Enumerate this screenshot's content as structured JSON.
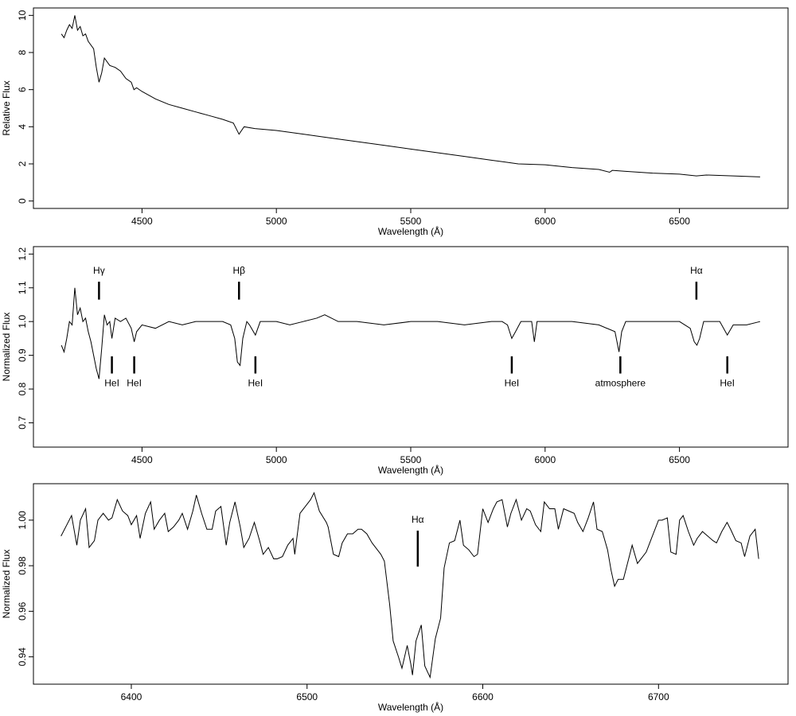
{
  "chart_data": [
    {
      "type": "line",
      "xlabel": "Wavelength (Å)",
      "ylabel": "Relative Flux",
      "color": "#000000",
      "xlim": [
        4096,
        6904
      ],
      "ylim": [
        -0.4,
        10.4
      ],
      "xticks": [
        4500,
        5000,
        5500,
        6000,
        6500
      ],
      "yticks": [
        0,
        2,
        4,
        6,
        8,
        10
      ],
      "x": [
        4200,
        4210,
        4220,
        4230,
        4240,
        4250,
        4260,
        4270,
        4280,
        4290,
        4300,
        4320,
        4330,
        4340,
        4350,
        4360,
        4380,
        4400,
        4420,
        4440,
        4460,
        4470,
        4480,
        4500,
        4550,
        4600,
        4650,
        4700,
        4750,
        4800,
        4840,
        4861,
        4880,
        4920,
        5000,
        5100,
        5200,
        5300,
        5400,
        5500,
        5600,
        5700,
        5800,
        5900,
        6000,
        6100,
        6200,
        6240,
        6250,
        6300,
        6400,
        6500,
        6563,
        6600,
        6700,
        6800
      ],
      "values": [
        9.0,
        8.8,
        9.2,
        9.5,
        9.3,
        10.0,
        9.2,
        9.4,
        8.9,
        9.0,
        8.6,
        8.2,
        7.2,
        6.4,
        6.9,
        7.7,
        7.3,
        7.2,
        7.0,
        6.6,
        6.4,
        6.0,
        6.1,
        5.9,
        5.5,
        5.2,
        5.0,
        4.8,
        4.6,
        4.4,
        4.2,
        3.6,
        4.0,
        3.9,
        3.8,
        3.6,
        3.4,
        3.2,
        3.0,
        2.8,
        2.6,
        2.4,
        2.2,
        2.0,
        1.95,
        1.8,
        1.7,
        1.55,
        1.65,
        1.6,
        1.5,
        1.45,
        1.35,
        1.4,
        1.35,
        1.3
      ],
      "annotations": []
    },
    {
      "type": "line",
      "xlabel": "Wavelength (Å)",
      "ylabel": "Normalized Flux",
      "color": "#000000",
      "xlim": [
        4096,
        6904
      ],
      "ylim": [
        0.628,
        1.222
      ],
      "xticks": [
        4500,
        5000,
        5500,
        6000,
        6500
      ],
      "yticks": [
        0.7,
        0.8,
        0.9,
        {
          "value": 1,
          "label": "1.0"
        },
        1.1,
        1.2
      ],
      "x": [
        4200,
        4210,
        4220,
        4230,
        4240,
        4250,
        4260,
        4270,
        4280,
        4290,
        4300,
        4310,
        4320,
        4330,
        4340,
        4350,
        4360,
        4370,
        4380,
        4388,
        4400,
        4420,
        4440,
        4460,
        4471,
        4480,
        4500,
        4550,
        4600,
        4650,
        4700,
        4750,
        4800,
        4830,
        4845,
        4855,
        4865,
        4875,
        4890,
        4900,
        4922,
        4940,
        5000,
        5050,
        5100,
        5150,
        5180,
        5230,
        5300,
        5400,
        5500,
        5600,
        5700,
        5800,
        5840,
        5860,
        5876,
        5890,
        5910,
        5950,
        5960,
        5970,
        6000,
        6100,
        6200,
        6260,
        6275,
        6285,
        6300,
        6400,
        6500,
        6540,
        6555,
        6565,
        6575,
        6590,
        6650,
        6678,
        6700,
        6750,
        6800
      ],
      "values": [
        0.93,
        0.91,
        0.95,
        1.0,
        0.99,
        1.1,
        1.02,
        1.04,
        1.0,
        1.01,
        0.97,
        0.94,
        0.9,
        0.86,
        0.83,
        0.92,
        1.02,
        0.99,
        1.0,
        0.95,
        1.01,
        1.0,
        1.01,
        0.98,
        0.94,
        0.97,
        0.99,
        0.98,
        1.0,
        0.99,
        1.0,
        1.0,
        1.0,
        0.99,
        0.95,
        0.88,
        0.87,
        0.95,
        1.0,
        0.99,
        0.96,
        1.0,
        1.0,
        0.99,
        1.0,
        1.01,
        1.02,
        1.0,
        1.0,
        0.99,
        1.0,
        1.0,
        0.99,
        1.0,
        1.0,
        0.99,
        0.95,
        0.97,
        1.0,
        1.0,
        0.94,
        1.0,
        1.0,
        1.0,
        0.99,
        0.97,
        0.91,
        0.97,
        1.0,
        1.0,
        1.0,
        0.98,
        0.94,
        0.93,
        0.95,
        1.0,
        1.0,
        0.96,
        0.99,
        0.99,
        1.0
      ],
      "annotations": [
        {
          "text": "Hγ",
          "x": 4340,
          "ymin": 1.065,
          "ymax": 1.118,
          "label_pos": "above"
        },
        {
          "text": "HeI",
          "x": 4388,
          "ymin": 0.846,
          "ymax": 0.897,
          "label_pos": "below"
        },
        {
          "text": "HeI",
          "x": 4471,
          "ymin": 0.846,
          "ymax": 0.897,
          "label_pos": "below"
        },
        {
          "text": "Hβ",
          "x": 4861,
          "ymin": 1.065,
          "ymax": 1.118,
          "label_pos": "above"
        },
        {
          "text": "HeI",
          "x": 4922,
          "ymin": 0.846,
          "ymax": 0.897,
          "label_pos": "below"
        },
        {
          "text": "HeI",
          "x": 5876,
          "ymin": 0.846,
          "ymax": 0.897,
          "label_pos": "below"
        },
        {
          "text": "atmosphere",
          "x": 6280,
          "ymin": 0.846,
          "ymax": 0.897,
          "label_pos": "below"
        },
        {
          "text": "Hα",
          "x": 6563,
          "ymin": 1.065,
          "ymax": 1.118,
          "label_pos": "above"
        },
        {
          "text": "HeI",
          "x": 6678,
          "ymin": 0.846,
          "ymax": 0.897,
          "label_pos": "below"
        }
      ]
    },
    {
      "type": "line",
      "xlabel": "Wavelength (Å)",
      "ylabel": "Normalized Flux",
      "color": "#000000",
      "xlim": [
        6344.3,
        6773.7
      ],
      "ylim": [
        0.928,
        1.016
      ],
      "xticks": [
        6400,
        6500,
        6600,
        6700
      ],
      "yticks": [
        0.94,
        0.96,
        0.98,
        {
          "value": 1,
          "label": "1.00"
        }
      ],
      "x": [
        6360,
        6364,
        6366,
        6369,
        6371,
        6374,
        6376,
        6379,
        6381,
        6384,
        6387,
        6389,
        6392,
        6395,
        6398,
        6400,
        6403,
        6405,
        6408,
        6411,
        6413,
        6416,
        6419,
        6421,
        6424,
        6427,
        6429,
        6432,
        6435,
        6437,
        6440,
        6443,
        6446,
        6448,
        6451,
        6454,
        6456,
        6459,
        6462,
        6464,
        6467,
        6470,
        6473,
        6475,
        6478,
        6481,
        6483,
        6486,
        6489,
        6492,
        6493,
        6496,
        6500,
        6502,
        6504,
        6507,
        6511,
        6512,
        6515,
        6518,
        6520,
        6523,
        6526,
        6529,
        6531,
        6534,
        6537,
        6540,
        6542,
        6544,
        6547,
        6549,
        6552,
        6554,
        6557,
        6559,
        6560,
        6562,
        6565,
        6567,
        6570,
        6573,
        6576,
        6578,
        6581,
        6584,
        6587,
        6589,
        6592,
        6595,
        6597,
        6600,
        6603,
        6606,
        6608,
        6611,
        6614,
        6616,
        6619,
        6622,
        6625,
        6627,
        6630,
        6633,
        6635,
        6638,
        6641,
        6643,
        6646,
        6649,
        6652,
        6654,
        6657,
        6660,
        6663,
        6665,
        6668,
        6671,
        6673,
        6675,
        6677,
        6680,
        6683,
        6685,
        6688,
        6691,
        6693,
        6696,
        6700,
        6702,
        6705,
        6707,
        6710,
        6712,
        6714,
        6717,
        6720,
        6722,
        6725,
        6728,
        6731,
        6733,
        6736,
        6739,
        6741,
        6744,
        6747,
        6749,
        6752,
        6755,
        6757
      ],
      "values": [
        0.993,
        0.999,
        1.002,
        0.989,
        1.0,
        1.005,
        0.988,
        0.991,
        1.0,
        1.003,
        1.0,
        1.001,
        1.009,
        1.004,
        1.002,
        0.998,
        1.002,
        0.992,
        1.003,
        1.008,
        0.996,
        1.0,
        1.003,
        0.995,
        0.997,
        1.0,
        1.003,
        0.996,
        1.004,
        1.011,
        1.003,
        0.996,
        0.996,
        1.004,
        1.006,
        0.989,
        0.999,
        1.008,
        0.997,
        0.988,
        0.992,
        0.999,
        0.991,
        0.985,
        0.988,
        0.983,
        0.983,
        0.984,
        0.989,
        0.992,
        0.985,
        1.003,
        1.007,
        1.009,
        1.012,
        1.004,
        0.999,
        0.997,
        0.985,
        0.984,
        0.99,
        0.994,
        0.994,
        0.996,
        0.996,
        0.994,
        0.99,
        0.987,
        0.985,
        0.982,
        0.963,
        0.947,
        0.94,
        0.935,
        0.945,
        0.937,
        0.932,
        0.947,
        0.954,
        0.936,
        0.931,
        0.948,
        0.957,
        0.979,
        0.99,
        0.991,
        1.0,
        0.989,
        0.987,
        0.984,
        0.985,
        1.005,
        0.999,
        1.005,
        1.008,
        1.009,
        0.997,
        1.003,
        1.009,
        1.0,
        1.005,
        1.004,
        0.998,
        0.995,
        1.008,
        1.005,
        1.005,
        0.996,
        1.005,
        1.004,
        1.003,
        0.999,
        0.995,
        1.001,
        1.008,
        0.996,
        0.995,
        0.987,
        0.978,
        0.971,
        0.974,
        0.974,
        0.983,
        0.989,
        0.981,
        0.984,
        0.986,
        0.992,
        1.0,
        1.0,
        1.001,
        0.986,
        0.985,
        1.0,
        1.002,
        0.995,
        0.989,
        0.992,
        0.995,
        0.993,
        0.991,
        0.99,
        0.995,
        0.999,
        0.996,
        0.991,
        0.99,
        0.984,
        0.993,
        0.996,
        0.983
      ],
      "annotations": [
        {
          "text": "Hα",
          "x": 6563,
          "ymin": 0.9796,
          "ymax": 0.9954,
          "label_pos": "above"
        }
      ]
    }
  ]
}
